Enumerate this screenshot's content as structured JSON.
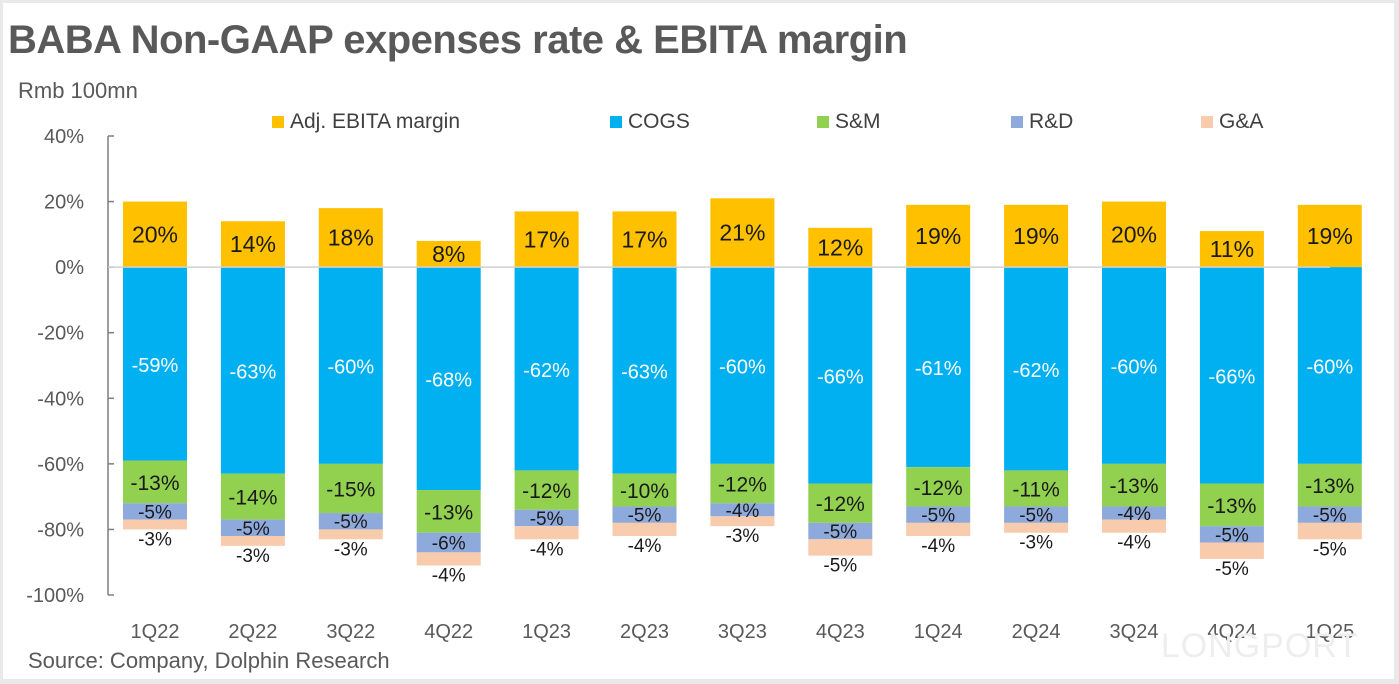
{
  "chart_data": {
    "type": "bar",
    "stacked": true,
    "title": "BABA Non-GAAP expenses rate & EBITA margin",
    "subtitle": "Rmb 100mn",
    "source": "Source: Company, Dolphin Research",
    "xlabel": "",
    "ylabel": "",
    "ylim": [
      -100,
      40
    ],
    "yticks": [
      40,
      20,
      0,
      -20,
      -40,
      -60,
      -80,
      -100
    ],
    "ytick_labels": [
      "40%",
      "20%",
      "0%",
      "-20%",
      "-40%",
      "-60%",
      "-80%",
      "-100%"
    ],
    "grid": false,
    "legend_position": "top",
    "categories": [
      "1Q22",
      "2Q22",
      "3Q22",
      "4Q22",
      "1Q23",
      "2Q23",
      "3Q23",
      "4Q23",
      "1Q24",
      "2Q24",
      "3Q24",
      "4Q24",
      "1Q25"
    ],
    "series": [
      {
        "name": "Adj. EBITA margin",
        "color": "#FFC000",
        "label_color": "#1a1a1a",
        "values": [
          20,
          14,
          18,
          8,
          17,
          17,
          21,
          12,
          19,
          19,
          20,
          11,
          19
        ]
      },
      {
        "name": "COGS",
        "color": "#00B0F0",
        "label_color": "#ffffff",
        "values": [
          -59,
          -63,
          -60,
          -68,
          -62,
          -63,
          -60,
          -66,
          -61,
          -62,
          -60,
          -66,
          -60
        ]
      },
      {
        "name": "S&M",
        "color": "#92D050",
        "label_color": "#1a1a1a",
        "values": [
          -13,
          -14,
          -15,
          -13,
          -12,
          -10,
          -12,
          -12,
          -12,
          -11,
          -13,
          -13,
          -13
        ]
      },
      {
        "name": "R&D",
        "color": "#8EA9DB",
        "label_color": "#1a1a1a",
        "values": [
          -5,
          -5,
          -5,
          -6,
          -5,
          -5,
          -4,
          -5,
          -5,
          -5,
          -4,
          -5,
          -5
        ]
      },
      {
        "name": "G&A",
        "color": "#F8CBAD",
        "label_color": "#1a1a1a",
        "values": [
          -3,
          -3,
          -3,
          -4,
          -4,
          -4,
          -3,
          -5,
          -4,
          -3,
          -4,
          -5,
          -5
        ]
      }
    ]
  },
  "watermark": {
    "text": "LONGPORT"
  }
}
